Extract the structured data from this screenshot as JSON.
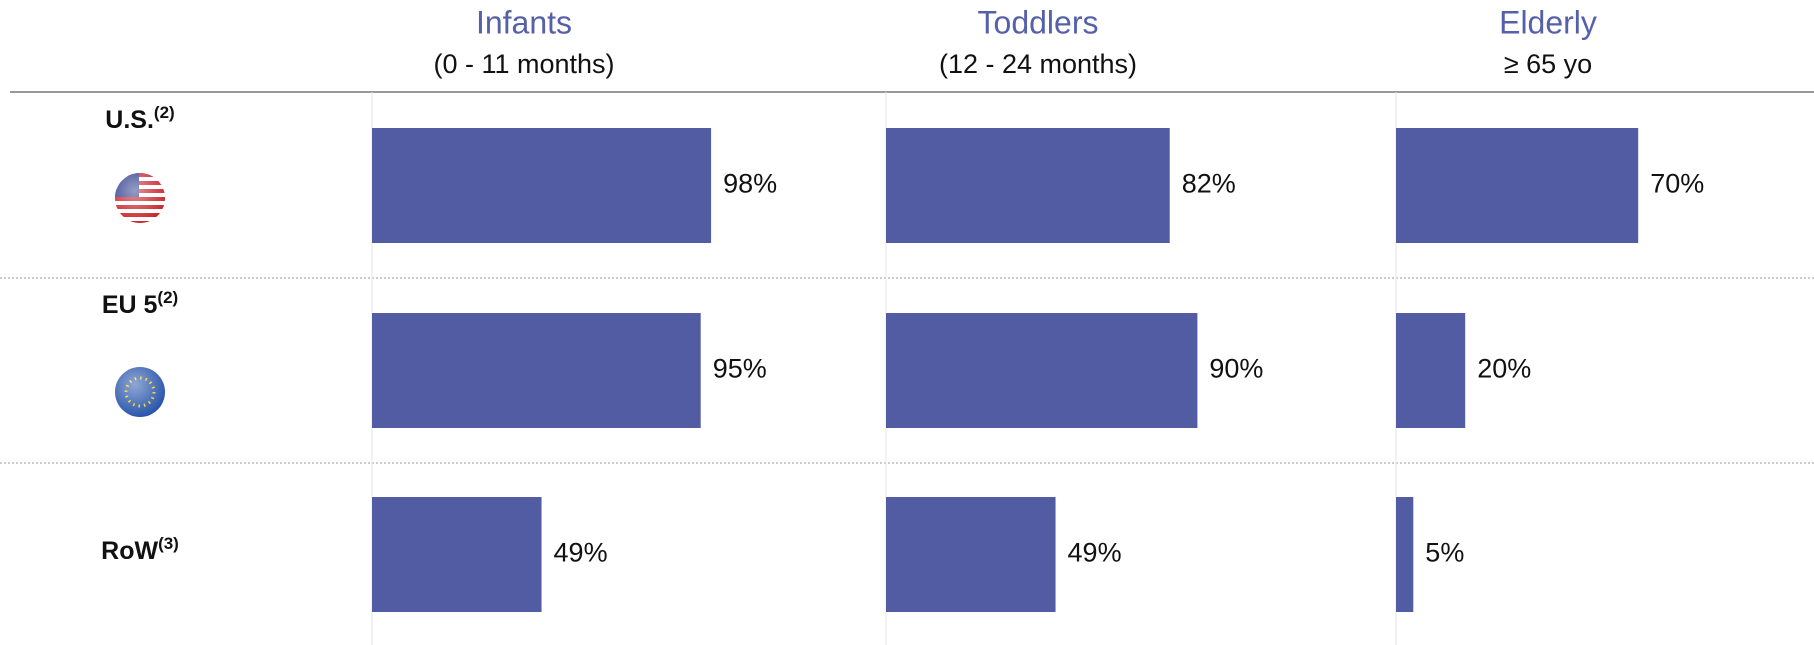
{
  "rows": [
    {
      "label": "U.S.",
      "note": "(2)"
    },
    {
      "label": "EU 5",
      "note": "(2)"
    },
    {
      "label": "RoW",
      "note": "(3)"
    }
  ],
  "chart_data": [
    {
      "type": "bar",
      "title": "Infants",
      "subtitle": "(0 - 11 months)",
      "values": [
        98,
        95,
        49
      ],
      "value_labels": [
        "98%",
        "95%",
        "49%"
      ],
      "color": "#525ca3",
      "xlim": [
        0,
        100
      ]
    },
    {
      "type": "bar",
      "title": "Toddlers",
      "subtitle": "(12 - 24 months)",
      "values": [
        82,
        90,
        49
      ],
      "value_labels": [
        "82%",
        "90%",
        "49%"
      ],
      "color": "#525ca3",
      "xlim": [
        0,
        100
      ]
    },
    {
      "type": "bar",
      "title": "Elderly",
      "subtitle": "≥ 65 yo",
      "values": [
        70,
        20,
        5
      ],
      "value_labels": [
        "70%",
        "20%",
        "5%"
      ],
      "color": "#525ca3",
      "xlim": [
        0,
        100
      ]
    }
  ]
}
